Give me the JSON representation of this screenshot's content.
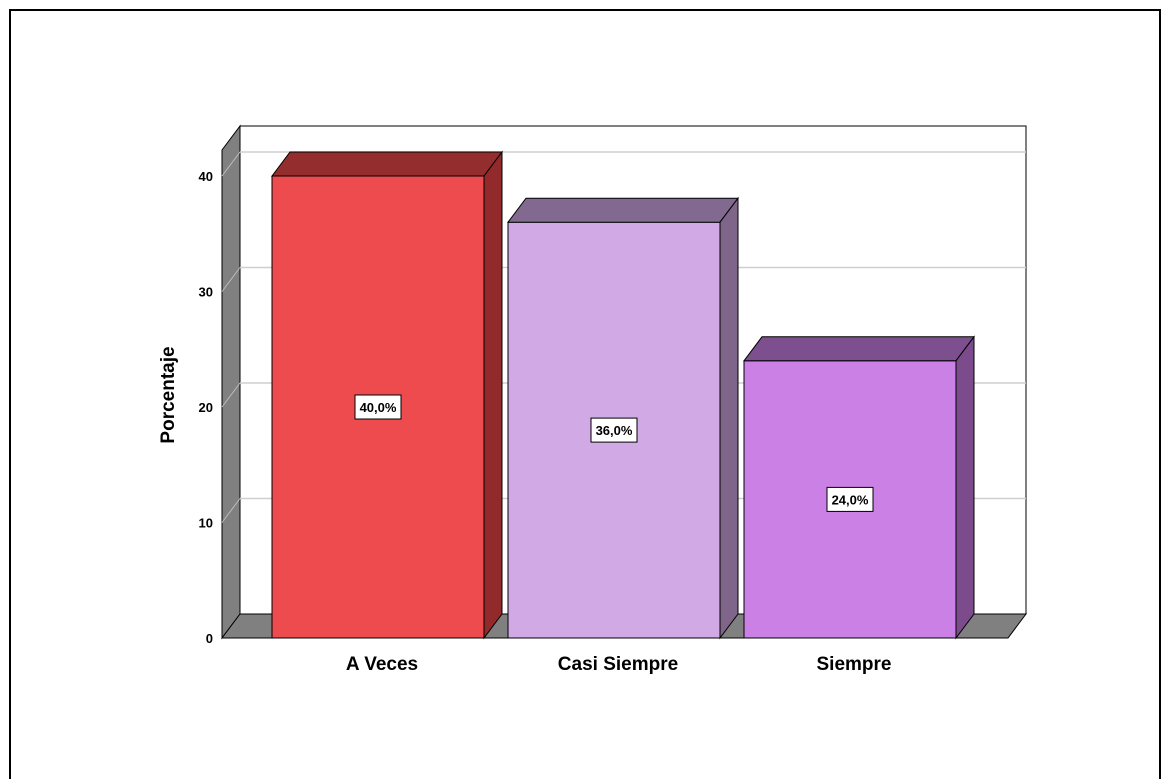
{
  "chart_data": {
    "type": "bar",
    "categories": [
      "A Veces",
      "Casi Siempre",
      "Siempre"
    ],
    "values": [
      40.0,
      36.0,
      24.0
    ],
    "data_labels": [
      "40,0%",
      "36,0%",
      "24,0%"
    ],
    "title": "",
    "xlabel": "",
    "ylabel": "Porcentaje",
    "ylim": [
      0,
      42
    ],
    "yticks": [
      0,
      10,
      20,
      30,
      40
    ],
    "grid": true,
    "style": "3d",
    "colors": {
      "front": [
        "#ee4b4e",
        "#d0a9e5",
        "#ca80e4"
      ],
      "top": [
        "#932d2e",
        "#81698f",
        "#7d4f8e"
      ],
      "side": [
        "#92292b",
        "#7e6589",
        "#7b4b8b"
      ],
      "wall": "#808080"
    }
  }
}
